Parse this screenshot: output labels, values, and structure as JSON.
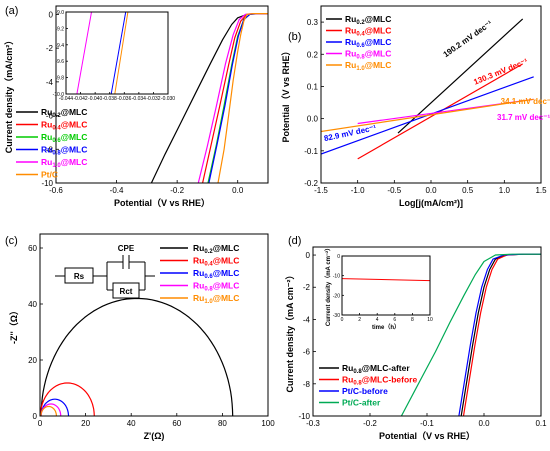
{
  "chart_data": [
    {
      "panel": "(a)",
      "type": "line",
      "xlabel": "Potential（V vs RHE）",
      "ylabel": "Current density（mA/cm²）",
      "xlim": [
        -0.6,
        0.1
      ],
      "ylim": [
        -10,
        0.5
      ],
      "xticks": [
        "-0.6",
        "-0.4",
        "-0.2",
        "0.0"
      ],
      "yticks": [
        "-10",
        "-8",
        "-6",
        "-4",
        "-2",
        "0"
      ],
      "series": [
        {
          "name": "Ru0.2@MLC",
          "base": "Ru",
          "sub": "0.2",
          "suffix": "@MLC",
          "color": "#000000",
          "x": [
            -0.285,
            -0.24,
            -0.19,
            -0.14,
            -0.09,
            -0.05,
            -0.02,
            0.0,
            0.03,
            0.06,
            0.1
          ],
          "y": [
            -10,
            -8.3,
            -6.5,
            -4.7,
            -2.9,
            -1.5,
            -0.6,
            -0.2,
            0.0,
            0.05,
            0.05
          ]
        },
        {
          "name": "Ru0.4@MLC",
          "base": "Ru",
          "sub": "0.4",
          "suffix": "@MLC",
          "color": "#ff0000",
          "x": [
            -0.116,
            -0.09,
            -0.06,
            -0.03,
            -0.01,
            0.01,
            0.03,
            0.06,
            0.1
          ],
          "y": [
            -10,
            -7.9,
            -5.5,
            -3.0,
            -1.4,
            -0.4,
            0.0,
            0.05,
            0.05
          ]
        },
        {
          "name": "Ru0.6@MLC",
          "base": "Ru",
          "sub": "0.6",
          "suffix": "@MLC",
          "color": "#00cc00",
          "x": [
            -0.098,
            -0.07,
            -0.045,
            -0.02,
            0.0,
            0.02,
            0.04,
            0.07,
            0.1
          ],
          "y": [
            -10,
            -7.7,
            -5.4,
            -3.0,
            -1.3,
            -0.3,
            0.0,
            0.05,
            0.05
          ]
        },
        {
          "name": "Ru0.8@MLC",
          "base": "Ru",
          "sub": "0.8",
          "suffix": "@MLC",
          "color": "#0000ff",
          "x": [
            -0.095,
            -0.068,
            -0.042,
            -0.018,
            0.002,
            0.02,
            0.04,
            0.07,
            0.1
          ],
          "y": [
            -10,
            -7.7,
            -5.4,
            -3.0,
            -1.3,
            -0.3,
            0.0,
            0.05,
            0.05
          ]
        },
        {
          "name": "Ru1.0@MLC",
          "base": "Ru",
          "sub": "1.0",
          "suffix": "@MLC",
          "color": "#ff00ff",
          "x": [
            -0.13,
            -0.1,
            -0.07,
            -0.04,
            -0.015,
            0.005,
            0.025,
            0.05,
            0.1
          ],
          "y": [
            -10,
            -7.8,
            -5.4,
            -2.9,
            -1.2,
            -0.3,
            0.0,
            0.05,
            0.05
          ]
        },
        {
          "name": "Pt/C",
          "base": "Pt/C",
          "sub": "",
          "suffix": "",
          "color": "#ff8c00",
          "x": [
            -0.065,
            -0.045,
            -0.03,
            -0.015,
            0.0,
            0.01,
            0.02,
            0.03,
            0.05,
            0.1
          ],
          "y": [
            -10,
            -8.0,
            -6.0,
            -3.9,
            -2.2,
            -1.2,
            -0.4,
            0.0,
            0.05,
            0.05
          ]
        }
      ],
      "inset": {
        "xlim": [
          -0.044,
          -0.03
        ],
        "ylim": [
          -10,
          -9.0
        ],
        "xticks": [
          "-0.044",
          "-0.042",
          "-0.040",
          "-0.038",
          "-0.036",
          "-0.034",
          "-0.032",
          "-0.030"
        ],
        "yticks": [
          "-10.0",
          "-9.8",
          "-9.6",
          "-9.4",
          "-9.2",
          "-9.0"
        ],
        "lines": [
          {
            "color": "#ff00ff",
            "x": [
              -0.0425,
              -0.0405
            ],
            "y": [
              -10.0,
              -9.0
            ]
          },
          {
            "color": "#0000ff",
            "x": [
              -0.0378,
              -0.0358
            ],
            "y": [
              -10.0,
              -9.0
            ]
          },
          {
            "color": "#ff8c00",
            "x": [
              -0.0373,
              -0.0355
            ],
            "y": [
              -10.0,
              -9.0
            ]
          }
        ]
      }
    },
    {
      "panel": "(b)",
      "type": "line",
      "xlabel": "Log[j(mA/cm²)]",
      "ylabel": "Potential（V vs RHE）",
      "xlim": [
        -1.5,
        1.5
      ],
      "ylim": [
        -0.2,
        0.35
      ],
      "xticks": [
        "-1.5",
        "-1.0",
        "-0.5",
        "0.0",
        "0.5",
        "1.0",
        "1.5"
      ],
      "yticks": [
        "-0.2",
        "-0.1",
        "0.0",
        "0.1",
        "0.2",
        "0.3"
      ],
      "series": [
        {
          "name": "Ru0.2@MLC",
          "base": "Ru",
          "sub": "0.2",
          "suffix": "@MLC",
          "color": "#000000",
          "x": [
            -0.45,
            1.25
          ],
          "y": [
            -0.045,
            0.31
          ]
        },
        {
          "name": "Ru0.4@MLC",
          "base": "Ru",
          "sub": "0.4",
          "suffix": "@MLC",
          "color": "#ff0000",
          "x": [
            -1.0,
            1.25
          ],
          "y": [
            -0.125,
            0.17
          ]
        },
        {
          "name": "Ru0.6@MLC",
          "base": "Ru",
          "sub": "0.6",
          "suffix": "@MLC",
          "color": "#0000ff",
          "x": [
            -1.5,
            1.4
          ],
          "y": [
            -0.11,
            0.13
          ]
        },
        {
          "name": "Ru0.8@MLC",
          "base": "Ru",
          "sub": "0.8",
          "suffix": "@MLC",
          "color": "#ff00ff",
          "x": [
            -1.0,
            1.4
          ],
          "y": [
            -0.015,
            0.06
          ]
        },
        {
          "name": "Ru1.0@MLC",
          "base": "Ru",
          "sub": "1.0",
          "suffix": "@MLC",
          "color": "#ff8c00",
          "x": [
            -1.5,
            1.4
          ],
          "y": [
            -0.04,
            0.06
          ]
        }
      ],
      "annotations": [
        {
          "text": "190.2 mV dec⁻¹",
          "color": "#000000",
          "x": 0.2,
          "y": 0.19,
          "rotate": -35
        },
        {
          "text": "130.3 mV dec⁻¹",
          "color": "#ff0000",
          "x": 0.6,
          "y": 0.105,
          "rotate": -22
        },
        {
          "text": "34.1 mV dec⁻¹",
          "color": "#ff8c00",
          "x": 0.95,
          "y": 0.045,
          "rotate": 0
        },
        {
          "text": "31.7 mV dec⁻¹",
          "color": "#ff00ff",
          "x": 0.9,
          "y": -0.005,
          "rotate": 0
        },
        {
          "text": "82.9 mV dec⁻¹",
          "color": "#0000ff",
          "x": -1.45,
          "y": -0.07,
          "rotate": -12
        }
      ]
    },
    {
      "panel": "(c)",
      "type": "line",
      "xlabel": "Z'(Ω)",
      "ylabel": "-Z''（Ω）",
      "xlim": [
        0,
        100
      ],
      "ylim": [
        0,
        65
      ],
      "xticks": [
        "0",
        "20",
        "40",
        "60",
        "80",
        "100"
      ],
      "yticks": [
        "0",
        "20",
        "40",
        "60"
      ],
      "series": [
        {
          "name": "Ru0.2@MLC",
          "base": "Ru",
          "sub": "0.2",
          "suffix": "@MLC",
          "color": "#000000",
          "center": 42.5,
          "radius": 42.0
        },
        {
          "name": "Ru0.4@MLC",
          "base": "Ru",
          "sub": "0.4",
          "suffix": "@MLC",
          "color": "#ff0000",
          "center": 12.0,
          "radius": 11.8
        },
        {
          "name": "Ru0.6@MLC",
          "base": "Ru",
          "sub": "0.6",
          "suffix": "@MLC",
          "color": "#0000ff",
          "center": 6.5,
          "radius": 6.0
        },
        {
          "name": "Ru0.8@MLC",
          "base": "Ru",
          "sub": "0.8",
          "suffix": "@MLC",
          "color": "#ff00ff",
          "center": 4.8,
          "radius": 4.3
        },
        {
          "name": "Ru1.0@MLC",
          "base": "Ru",
          "sub": "1.0",
          "suffix": "@MLC",
          "color": "#ff8c00",
          "center": 3.8,
          "radius": 3.4
        }
      ],
      "circuit": {
        "cpe": "CPE",
        "rs": "Rs",
        "rct": "Rct"
      }
    },
    {
      "panel": "(d)",
      "type": "line",
      "xlabel": "Potential（V vs RHE）",
      "ylabel": "Current density（mA cm⁻²）",
      "xlim": [
        -0.3,
        0.1
      ],
      "ylim": [
        -10,
        0.5
      ],
      "xticks": [
        "-0.3",
        "-0.2",
        "-0.1",
        "0.0",
        "0.1"
      ],
      "yticks": [
        "-10",
        "-8",
        "-6",
        "-4",
        "-2",
        "0"
      ],
      "series": [
        {
          "name": "Ru0.8@MLC-after",
          "base": "Ru",
          "sub": "0.8",
          "suffix": "@MLC-after",
          "color": "#000000",
          "x": [
            -0.04,
            -0.03,
            -0.02,
            -0.01,
            0.0,
            0.01,
            0.02,
            0.04,
            0.07,
            0.1
          ],
          "y": [
            -10,
            -7.8,
            -5.6,
            -3.6,
            -2.0,
            -0.9,
            -0.25,
            0.0,
            0.05,
            0.05
          ]
        },
        {
          "name": "Ru0.8@MLC-before",
          "base": "Ru",
          "sub": "0.8",
          "suffix": "@MLC-before",
          "color": "#ff0000",
          "x": [
            -0.036,
            -0.026,
            -0.016,
            -0.006,
            0.004,
            0.014,
            0.024,
            0.04,
            0.07,
            0.1
          ],
          "y": [
            -10,
            -7.8,
            -5.6,
            -3.6,
            -2.0,
            -0.9,
            -0.25,
            0.0,
            0.05,
            0.05
          ]
        },
        {
          "name": "Pt/C-before",
          "base": "Pt/C-before",
          "sub": "",
          "suffix": "",
          "color": "#0000ff",
          "x": [
            -0.044,
            -0.034,
            -0.024,
            -0.014,
            -0.004,
            0.006,
            0.016,
            0.035,
            0.07,
            0.1
          ],
          "y": [
            -10,
            -7.8,
            -5.6,
            -3.6,
            -2.0,
            -0.9,
            -0.25,
            0.0,
            0.05,
            0.05
          ]
        },
        {
          "name": "Pt/C-after",
          "base": "Pt/C-after",
          "sub": "",
          "suffix": "",
          "color": "#00aa55",
          "x": [
            -0.145,
            -0.115,
            -0.085,
            -0.06,
            -0.035,
            -0.015,
            0.0,
            0.02,
            0.05,
            0.1
          ],
          "y": [
            -10,
            -8.0,
            -6.0,
            -4.2,
            -2.5,
            -1.2,
            -0.4,
            0.0,
            0.05,
            0.05
          ]
        }
      ],
      "inset": {
        "xlabel": "time（h）",
        "ylabel": "Current density（mA cm⁻²）",
        "xlim": [
          0,
          10
        ],
        "ylim": [
          -30,
          0
        ],
        "xticks": [
          "0",
          "2",
          "4",
          "6",
          "8",
          "10"
        ],
        "yticks": [
          "-30",
          "-20",
          "-10",
          "0"
        ],
        "line": {
          "color": "#ff0000",
          "x": [
            0,
            10
          ],
          "y": [
            -11.5,
            -12.5
          ]
        }
      }
    }
  ]
}
